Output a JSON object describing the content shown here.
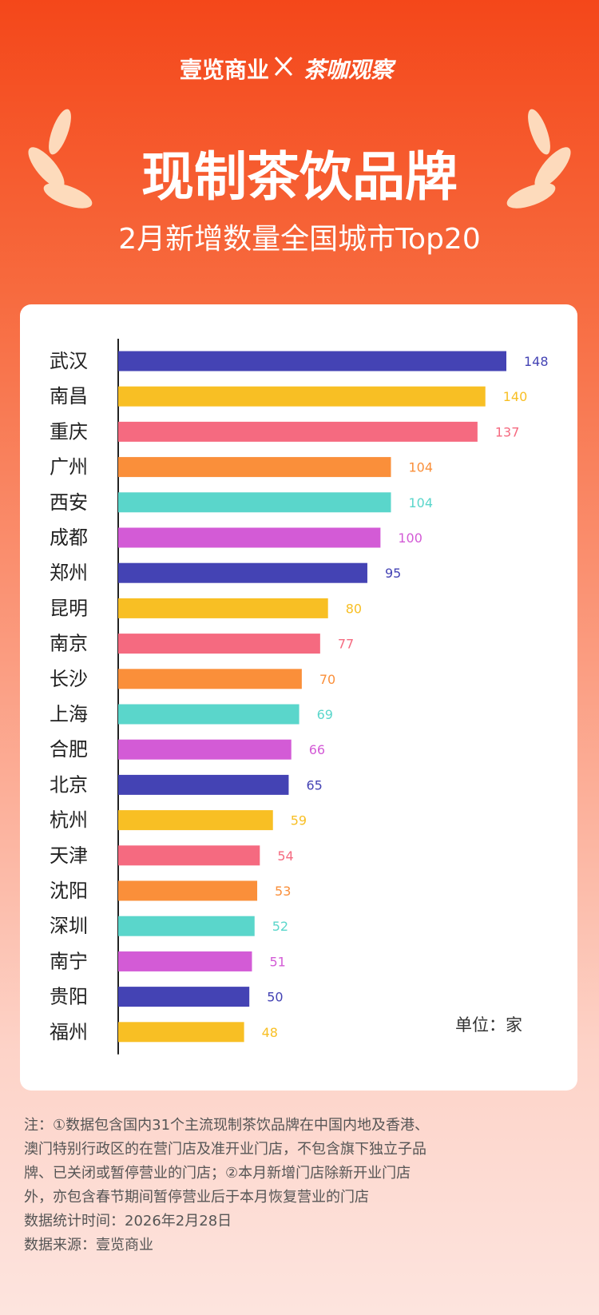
{
  "header": {
    "brand_left": "壹览商业",
    "brand_right": "茶咖观察",
    "title": "现制茶饮品牌",
    "subtitle": "2月新增数量全国城市Top20"
  },
  "chart_data": {
    "type": "bar",
    "orientation": "horizontal",
    "categories": [
      "武汉",
      "南昌",
      "重庆",
      "广州",
      "西安",
      "成都",
      "郑州",
      "昆明",
      "南京",
      "长沙",
      "上海",
      "合肥",
      "北京",
      "杭州",
      "天津",
      "沈阳",
      "深圳",
      "南宁",
      "贵阳",
      "福州"
    ],
    "values": [
      148,
      140,
      137,
      104,
      104,
      100,
      95,
      80,
      77,
      70,
      69,
      66,
      65,
      59,
      54,
      53,
      52,
      51,
      50,
      48
    ],
    "colors": [
      "#4443b4",
      "#f8bf24",
      "#f56a80",
      "#fa8f3a",
      "#5ad6cb",
      "#d35bd6",
      "#4443b4",
      "#f8bf24",
      "#f56a80",
      "#fa8f3a",
      "#5ad6cb",
      "#d35bd6",
      "#4443b4",
      "#f8bf24",
      "#f56a80",
      "#fa8f3a",
      "#5ad6cb",
      "#d35bd6",
      "#4443b4",
      "#f8bf24"
    ],
    "unit_label": "单位：家"
  },
  "notes": {
    "note": "注：①数据包含国内31个主流现制茶饮品牌在中国内地及香港、澳门特别行政区的在营门店及准开业门店，不包含旗下独立子品牌、已关闭或暂停营业的门店；②本月新增门店除新开业门店外，亦包含春节期间暂停营业后于本月恢复营业的门店",
    "date": "数据统计时间：2026年2月28日",
    "source": "数据来源：壹览商业"
  }
}
